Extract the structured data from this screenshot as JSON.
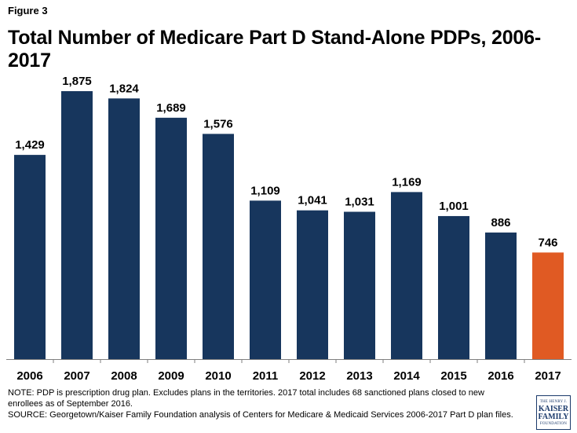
{
  "figure_label": "Figure 3",
  "chart_data": {
    "type": "bar",
    "title": "Total Number of Medicare Part D Stand-Alone PDPs, 2006-2017",
    "categories": [
      "2006",
      "2007",
      "2008",
      "2009",
      "2010",
      "2011",
      "2012",
      "2013",
      "2014",
      "2015",
      "2016",
      "2017"
    ],
    "values": [
      1429,
      1875,
      1824,
      1689,
      1576,
      1109,
      1041,
      1031,
      1169,
      1001,
      886,
      746
    ],
    "labels": [
      "1,429",
      "1,875",
      "1,824",
      "1,689",
      "1,576",
      "1,109",
      "1,041",
      "1,031",
      "1,169",
      "1,001",
      "886",
      "746"
    ],
    "ylim": [
      0,
      1875
    ],
    "xlabel": "",
    "ylabel": "",
    "colors": {
      "default": "#17365d",
      "highlight": "#e05a23",
      "highlight_index": 11
    }
  },
  "notes": {
    "note_line1": "NOTE: PDP is prescription drug plan. Excludes plans in the territories.  2017 total includes 68 sanctioned plans closed to new",
    "note_line2": "enrollees as of September  2016.",
    "source": "SOURCE: Georgetown/Kaiser  Family Foundation  analysis of Centers for Medicare & Medicaid Services 2006-2017 Part D plan files."
  },
  "logo": {
    "line1": "THE HENRY J.",
    "line2": "KAISER",
    "line3": "FAMILY",
    "line4": "FOUNDATION"
  }
}
